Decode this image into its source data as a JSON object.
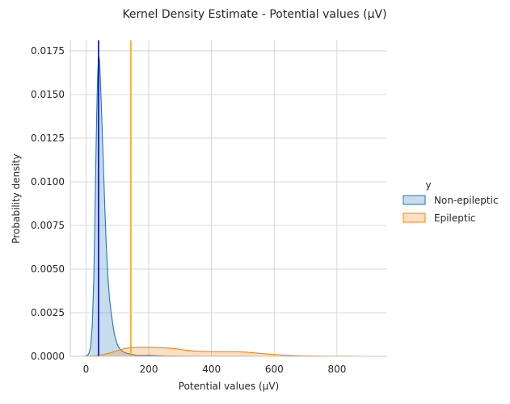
{
  "chart_data": {
    "type": "area",
    "title": "Kernel Density Estimate - Potential values (µV)",
    "xlabel": "Potential values (µV)",
    "ylabel": "Probability density",
    "xlim": [
      -50,
      960
    ],
    "ylim": [
      0,
      0.0181
    ],
    "x_ticks": [
      0,
      200,
      400,
      600,
      800
    ],
    "y_ticks": [
      0.0,
      0.0025,
      0.005,
      0.0075,
      0.01,
      0.0125,
      0.015,
      0.0175
    ],
    "y_tick_labels": [
      "0.0000",
      "0.0025",
      "0.0050",
      "0.0075",
      "0.0100",
      "0.0125",
      "0.0150",
      "0.0175"
    ],
    "grid": true,
    "legend": {
      "title": "y",
      "placement": "right",
      "entries": [
        "Non-epileptic",
        "Epileptic"
      ]
    },
    "series": [
      {
        "name": "Non-epileptic",
        "color": "#1f77b4",
        "x": [
          -5,
          5,
          10,
          15,
          20,
          25,
          28,
          31,
          34,
          37,
          40,
          43,
          46,
          50,
          55,
          60,
          65,
          70,
          75,
          80,
          85,
          90,
          100,
          110,
          120,
          130,
          140,
          150,
          160,
          170,
          180,
          200,
          220,
          250,
          300,
          400,
          500,
          560
        ],
        "y": [
          0.0,
          5e-05,
          0.0002,
          0.0006,
          0.0018,
          0.0045,
          0.0075,
          0.0108,
          0.0138,
          0.016,
          0.0172,
          0.017,
          0.0158,
          0.0138,
          0.0112,
          0.0085,
          0.0062,
          0.0045,
          0.0033,
          0.0025,
          0.0019,
          0.0013,
          0.00065,
          0.00038,
          0.00024,
          0.00018,
          0.00013,
          9e-05,
          6e-05,
          5e-05,
          5e-05,
          6e-05,
          4e-05,
          2e-05,
          1e-05,
          5e-06,
          3e-06,
          0.0
        ]
      },
      {
        "name": "Epileptic",
        "color": "#ff7f0e",
        "x": [
          -45,
          -20,
          0,
          20,
          40,
          60,
          80,
          100,
          120,
          140,
          160,
          180,
          200,
          220,
          250,
          280,
          300,
          320,
          350,
          380,
          400,
          430,
          460,
          500,
          530,
          560,
          600,
          640,
          680,
          720,
          780,
          840,
          900
        ],
        "y": [
          0.0,
          0.0,
          1e-05,
          2e-05,
          5e-05,
          0.00012,
          0.00022,
          0.00033,
          0.00043,
          0.00049,
          0.00051,
          0.00052,
          0.00052,
          0.00051,
          0.00049,
          0.00045,
          0.0004,
          0.00035,
          0.0003,
          0.00028,
          0.00027,
          0.00027,
          0.00027,
          0.00025,
          0.00021,
          0.00016,
          0.0001,
          6e-05,
          3e-05,
          2e-05,
          1e-05,
          1e-05,
          0.0
        ]
      }
    ],
    "vlines": [
      {
        "x": 40,
        "color": "#0000cd"
      },
      {
        "x": 143,
        "color": "#ffa500"
      }
    ]
  }
}
